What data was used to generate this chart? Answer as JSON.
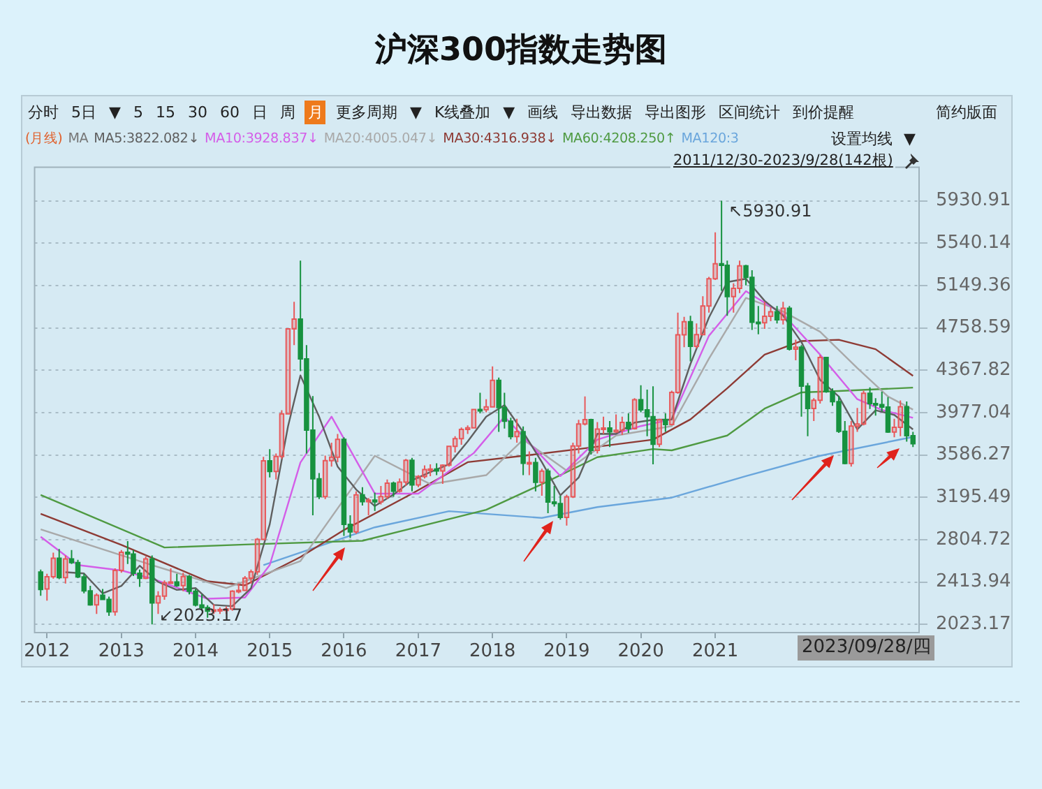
{
  "chart_data": {
    "type": "candlestick",
    "title": "沪深300指数走势图",
    "x": [
      "2011-12",
      "2012-01",
      "2012-02",
      "2012-03",
      "2012-04",
      "2012-05",
      "2012-06",
      "2012-07",
      "2012-08",
      "2012-09",
      "2012-10",
      "2012-11",
      "2012-12",
      "2013-01",
      "2013-02",
      "2013-03",
      "2013-04",
      "2013-05",
      "2013-06",
      "2013-07",
      "2013-08",
      "2013-09",
      "2013-10",
      "2013-11",
      "2013-12",
      "2014-01",
      "2014-02",
      "2014-03",
      "2014-04",
      "2014-05",
      "2014-06",
      "2014-07",
      "2014-08",
      "2014-09",
      "2014-10",
      "2014-11",
      "2014-12",
      "2015-01",
      "2015-02",
      "2015-03",
      "2015-04",
      "2015-05",
      "2015-06",
      "2015-07",
      "2015-08",
      "2015-09",
      "2015-10",
      "2015-11",
      "2015-12",
      "2016-01",
      "2016-02",
      "2016-03",
      "2016-04",
      "2016-05",
      "2016-06",
      "2016-07",
      "2016-08",
      "2016-09",
      "2016-10",
      "2016-11",
      "2016-12",
      "2017-01",
      "2017-02",
      "2017-03",
      "2017-04",
      "2017-05",
      "2017-06",
      "2017-07",
      "2017-08",
      "2017-09",
      "2017-10",
      "2017-11",
      "2017-12",
      "2018-01",
      "2018-02",
      "2018-03",
      "2018-04",
      "2018-05",
      "2018-06",
      "2018-07",
      "2018-08",
      "2018-09",
      "2018-10",
      "2018-11",
      "2018-12",
      "2019-01",
      "2019-02",
      "2019-03",
      "2019-04",
      "2019-05",
      "2019-06",
      "2019-07",
      "2019-08",
      "2019-09",
      "2019-10",
      "2019-11",
      "2019-12",
      "2020-01",
      "2020-02",
      "2020-03",
      "2020-04",
      "2020-05",
      "2020-06",
      "2020-07",
      "2020-08",
      "2020-09",
      "2020-10",
      "2020-11",
      "2020-12",
      "2021-01",
      "2021-02",
      "2021-03",
      "2021-04",
      "2021-05",
      "2021-06",
      "2021-07",
      "2021-08",
      "2021-09",
      "2021-10",
      "2021-11",
      "2021-12",
      "2022-01",
      "2022-02",
      "2022-03",
      "2022-04",
      "2022-05",
      "2022-06",
      "2022-07",
      "2022-08",
      "2022-09",
      "2022-10",
      "2022-11",
      "2022-12",
      "2023-01",
      "2023-02",
      "2023-03",
      "2023-04",
      "2023-05",
      "2023-06",
      "2023-07",
      "2023-08",
      "2023-09"
    ],
    "ohlc": [
      [
        2507,
        2530,
        2288,
        2346
      ],
      [
        2350,
        2490,
        2242,
        2464
      ],
      [
        2464,
        2685,
        2445,
        2634
      ],
      [
        2634,
        2720,
        2440,
        2455
      ],
      [
        2455,
        2660,
        2400,
        2627
      ],
      [
        2627,
        2710,
        2580,
        2593
      ],
      [
        2593,
        2620,
        2450,
        2461
      ],
      [
        2461,
        2490,
        2310,
        2333
      ],
      [
        2333,
        2380,
        2196,
        2204
      ],
      [
        2204,
        2310,
        2120,
        2293
      ],
      [
        2293,
        2350,
        2250,
        2254
      ],
      [
        2254,
        2280,
        2102,
        2140
      ],
      [
        2140,
        2540,
        2104,
        2522
      ],
      [
        2522,
        2710,
        2500,
        2688
      ],
      [
        2688,
        2791,
        2580,
        2673
      ],
      [
        2673,
        2710,
        2470,
        2495
      ],
      [
        2495,
        2530,
        2370,
        2448
      ],
      [
        2448,
        2650,
        2440,
        2627
      ],
      [
        2627,
        2660,
        2023.17,
        2221
      ],
      [
        2221,
        2330,
        2120,
        2284
      ],
      [
        2284,
        2430,
        2250,
        2409
      ],
      [
        2409,
        2540,
        2400,
        2415
      ],
      [
        2415,
        2490,
        2370,
        2381
      ],
      [
        2381,
        2500,
        2330,
        2465
      ],
      [
        2465,
        2480,
        2300,
        2330
      ],
      [
        2330,
        2350,
        2190,
        2203
      ],
      [
        2203,
        2300,
        2150,
        2178
      ],
      [
        2178,
        2200,
        2085,
        2146
      ],
      [
        2146,
        2210,
        2120,
        2158
      ],
      [
        2158,
        2180,
        2120,
        2160
      ],
      [
        2160,
        2190,
        2120,
        2165
      ],
      [
        2165,
        2340,
        2150,
        2329
      ],
      [
        2329,
        2400,
        2310,
        2338
      ],
      [
        2338,
        2470,
        2330,
        2450
      ],
      [
        2450,
        2530,
        2400,
        2508
      ],
      [
        2508,
        2820,
        2480,
        2808
      ],
      [
        2808,
        3570,
        2800,
        3533
      ],
      [
        3533,
        3640,
        3380,
        3434
      ],
      [
        3434,
        3600,
        3360,
        3572
      ],
      [
        3572,
        4000,
        3550,
        3966
      ],
      [
        3966,
        4750,
        3960,
        4749
      ],
      [
        4749,
        5000,
        4600,
        4840
      ],
      [
        4840,
        5380,
        4360,
        4473
      ],
      [
        4473,
        4600,
        3600,
        3816
      ],
      [
        3816,
        4130,
        3030,
        3366
      ],
      [
        3366,
        3420,
        3180,
        3202
      ],
      [
        3202,
        3580,
        3180,
        3534
      ],
      [
        3534,
        3700,
        3480,
        3566
      ],
      [
        3566,
        3780,
        3520,
        3731
      ],
      [
        3731,
        3750,
        2840,
        2946
      ],
      [
        2946,
        3030,
        2820,
        2877
      ],
      [
        2877,
        3250,
        2860,
        3218
      ],
      [
        3218,
        3290,
        3120,
        3156
      ],
      [
        3156,
        3190,
        3030,
        3170
      ],
      [
        3170,
        3240,
        3070,
        3154
      ],
      [
        3154,
        3300,
        3130,
        3203
      ],
      [
        3203,
        3360,
        3180,
        3327
      ],
      [
        3327,
        3340,
        3200,
        3253
      ],
      [
        3253,
        3370,
        3240,
        3336
      ],
      [
        3336,
        3550,
        3300,
        3538
      ],
      [
        3538,
        3560,
        3250,
        3310
      ],
      [
        3310,
        3400,
        3290,
        3387
      ],
      [
        3387,
        3490,
        3370,
        3452
      ],
      [
        3452,
        3500,
        3390,
        3456
      ],
      [
        3456,
        3510,
        3400,
        3439
      ],
      [
        3439,
        3500,
        3320,
        3492
      ],
      [
        3492,
        3670,
        3480,
        3666
      ],
      [
        3666,
        3760,
        3610,
        3737
      ],
      [
        3737,
        3840,
        3680,
        3822
      ],
      [
        3822,
        3860,
        3780,
        3837
      ],
      [
        3837,
        4010,
        3830,
        4006
      ],
      [
        4006,
        4160,
        3970,
        4004
      ],
      [
        4004,
        4100,
        3980,
        4030
      ],
      [
        4030,
        4403,
        4030,
        4275
      ],
      [
        4275,
        4300,
        3800,
        4023
      ],
      [
        4023,
        4160,
        3830,
        3898
      ],
      [
        3898,
        3930,
        3730,
        3756
      ],
      [
        3756,
        3920,
        3700,
        3802
      ],
      [
        3802,
        3850,
        3400,
        3510
      ],
      [
        3510,
        3620,
        3400,
        3517
      ],
      [
        3517,
        3560,
        3250,
        3334
      ],
      [
        3334,
        3460,
        3210,
        3438
      ],
      [
        3438,
        3460,
        3050,
        3153
      ],
      [
        3153,
        3300,
        3110,
        3138
      ],
      [
        3138,
        3210,
        2990,
        3010
      ],
      [
        3010,
        3220,
        2935,
        3201
      ],
      [
        3201,
        3700,
        3190,
        3669
      ],
      [
        3669,
        3910,
        3600,
        3872
      ],
      [
        3872,
        4127,
        3860,
        3913
      ],
      [
        3913,
        3920,
        3590,
        3629
      ],
      [
        3629,
        3890,
        3600,
        3825
      ],
      [
        3825,
        3940,
        3780,
        3835
      ],
      [
        3835,
        3900,
        3660,
        3799
      ],
      [
        3799,
        3960,
        3790,
        3814
      ],
      [
        3814,
        3940,
        3770,
        3886
      ],
      [
        3886,
        3970,
        3790,
        3828
      ],
      [
        3828,
        4110,
        3820,
        4096
      ],
      [
        4096,
        4230,
        3980,
        4003
      ],
      [
        4003,
        4190,
        3760,
        3940
      ],
      [
        3940,
        4220,
        3500,
        3686
      ],
      [
        3686,
        3920,
        3660,
        3912
      ],
      [
        3912,
        3970,
        3800,
        3868
      ],
      [
        3868,
        4180,
        3860,
        4163
      ],
      [
        4163,
        4900,
        4150,
        4695
      ],
      [
        4695,
        4860,
        4580,
        4816
      ],
      [
        4816,
        4870,
        4450,
        4588
      ],
      [
        4588,
        4800,
        4570,
        4696
      ],
      [
        4696,
        5050,
        4690,
        4960
      ],
      [
        4960,
        5230,
        4900,
        5211
      ],
      [
        5211,
        5640,
        5200,
        5351
      ],
      [
        5351,
        5930.91,
        5100,
        5336
      ],
      [
        5336,
        5380,
        4870,
        5048
      ],
      [
        5048,
        5170,
        4900,
        5123
      ],
      [
        5123,
        5380,
        5080,
        5331
      ],
      [
        5331,
        5340,
        5150,
        5224
      ],
      [
        5224,
        5290,
        4740,
        4811
      ],
      [
        4811,
        4960,
        4700,
        4806
      ],
      [
        4806,
        5000,
        4750,
        4866
      ],
      [
        4866,
        4950,
        4820,
        4908
      ],
      [
        4908,
        4960,
        4800,
        4833
      ],
      [
        4833,
        5000,
        4790,
        4940
      ],
      [
        4940,
        4960,
        4550,
        4563
      ],
      [
        4563,
        4650,
        4460,
        4581
      ],
      [
        4581,
        4600,
        3940,
        4222
      ],
      [
        4222,
        4250,
        3760,
        4016
      ],
      [
        4016,
        4110,
        3900,
        4091
      ],
      [
        4091,
        4510,
        4060,
        4485
      ],
      [
        4485,
        4490,
        4160,
        4170
      ],
      [
        4170,
        4200,
        4040,
        4079
      ],
      [
        4079,
        4130,
        3790,
        3804
      ],
      [
        3804,
        3900,
        3500,
        3509
      ],
      [
        3509,
        3900,
        3480,
        3853
      ],
      [
        3853,
        4020,
        3800,
        3872
      ],
      [
        3872,
        4180,
        3860,
        4156
      ],
      [
        4156,
        4210,
        4010,
        4061
      ],
      [
        4061,
        4110,
        3950,
        4051
      ],
      [
        4051,
        4170,
        3990,
        4029
      ],
      [
        4029,
        4120,
        3790,
        3798
      ],
      [
        3798,
        3920,
        3750,
        3842
      ],
      [
        3842,
        4090,
        3760,
        4031
      ],
      [
        4031,
        4080,
        3710,
        3765
      ],
      [
        3765,
        3800,
        3660,
        3690
      ]
    ],
    "colors": [
      "#17923f",
      "#e8585a",
      "#e8585a",
      "#17923f",
      "#e8585a",
      "#17923f",
      "#17923f",
      "#17923f",
      "#17923f",
      "#e8585a",
      "#17923f",
      "#17923f",
      "#e8585a",
      "#e8585a",
      "#17923f",
      "#17923f",
      "#17923f",
      "#e8585a",
      "#17923f",
      "#e8585a",
      "#e8585a",
      "#e8585a",
      "#17923f",
      "#e8585a",
      "#17923f",
      "#17923f",
      "#17923f",
      "#17923f",
      "#e8585a",
      "#e8585a",
      "#e8585a",
      "#e8585a",
      "#e8585a",
      "#e8585a",
      "#e8585a",
      "#e8585a",
      "#e8585a",
      "#17923f",
      "#e8585a",
      "#e8585a",
      "#e8585a",
      "#e8585a",
      "#17923f",
      "#17923f",
      "#17923f",
      "#17923f",
      "#e8585a",
      "#e8585a",
      "#e8585a",
      "#17923f",
      "#17923f",
      "#e8585a",
      "#17923f",
      "#e8585a",
      "#17923f",
      "#e8585a",
      "#e8585a",
      "#17923f",
      "#e8585a",
      "#e8585a",
      "#17923f",
      "#e8585a",
      "#e8585a",
      "#e8585a",
      "#17923f",
      "#e8585a",
      "#e8585a",
      "#e8585a",
      "#e8585a",
      "#e8585a",
      "#e8585a",
      "#17923f",
      "#e8585a",
      "#e8585a",
      "#17923f",
      "#17923f",
      "#17923f",
      "#e8585a",
      "#17923f",
      "#e8585a",
      "#17923f",
      "#e8585a",
      "#17923f",
      "#17923f",
      "#17923f",
      "#e8585a",
      "#e8585a",
      "#e8585a",
      "#e8585a",
      "#17923f",
      "#e8585a",
      "#e8585a",
      "#17923f",
      "#e8585a",
      "#e8585a",
      "#17923f",
      "#e8585a",
      "#17923f",
      "#17923f",
      "#17923f",
      "#e8585a",
      "#17923f",
      "#e8585a",
      "#e8585a",
      "#e8585a",
      "#17923f",
      "#e8585a",
      "#e8585a",
      "#e8585a",
      "#e8585a",
      "#17923f",
      "#17923f",
      "#e8585a",
      "#e8585a",
      "#17923f",
      "#17923f",
      "#17923f",
      "#e8585a",
      "#e8585a",
      "#17923f",
      "#e8585a",
      "#17923f",
      "#e8585a",
      "#17923f",
      "#17923f",
      "#e8585a",
      "#e8585a",
      "#17923f",
      "#17923f",
      "#17923f",
      "#17923f",
      "#e8585a",
      "#e8585a",
      "#e8585a",
      "#17923f",
      "#17923f",
      "#17923f",
      "#17923f",
      "#e8585a",
      "#e8585a",
      "#17923f",
      "#17923f"
    ],
    "series": [
      {
        "type": "line",
        "name": "MA5:3822.082↓",
        "color": "#5f5f5f",
        "x": [
          "2012-04",
          "2012-07",
          "2012-10",
          "2013-01",
          "2013-04",
          "2013-07",
          "2013-10",
          "2014-01",
          "2014-04",
          "2014-07",
          "2014-10",
          "2015-01",
          "2015-04",
          "2015-06",
          "2015-09",
          "2015-12",
          "2016-03",
          "2016-06",
          "2016-09",
          "2016-12",
          "2017-03",
          "2017-06",
          "2017-09",
          "2017-12",
          "2018-03",
          "2018-06",
          "2018-09",
          "2018-12",
          "2019-03",
          "2019-06",
          "2019-09",
          "2019-12",
          "2020-03",
          "2020-06",
          "2020-09",
          "2020-12",
          "2021-03",
          "2021-06",
          "2021-09",
          "2021-12",
          "2022-03",
          "2022-06",
          "2022-09",
          "2022-12",
          "2023-03",
          "2023-06",
          "2023-09"
        ],
        "values": [
          2505,
          2494,
          2309,
          2379,
          2565,
          2415,
          2342,
          2359,
          2203,
          2192,
          2358,
          2947,
          3851,
          4320,
          3939,
          3480,
          3268,
          3115,
          3221,
          3353,
          3429,
          3501,
          3711,
          3940,
          4046,
          3798,
          3520,
          3215,
          3378,
          3782,
          3780,
          3885,
          3911,
          3914,
          4426,
          4854,
          5181,
          5212,
          5008,
          4871,
          4628,
          4279,
          4126,
          3823,
          3999,
          3956,
          3822
        ]
      },
      {
        "type": "line",
        "name": "MA10:3928.837↓",
        "color": "#d45ee8",
        "x": [
          "2011-12",
          "2012-06",
          "2013-01",
          "2013-06",
          "2014-03",
          "2014-09",
          "2015-01",
          "2015-06",
          "2015-11",
          "2016-06",
          "2017-01",
          "2017-10",
          "2018-03",
          "2018-12",
          "2019-06",
          "2020-01",
          "2020-06",
          "2020-12",
          "2021-06",
          "2021-12",
          "2022-06",
          "2022-12",
          "2023-04",
          "2023-09"
        ],
        "values": [
          2832,
          2571,
          2521,
          2446,
          2260,
          2272,
          2571,
          3517,
          3940,
          3230,
          3230,
          3604,
          3940,
          3392,
          3728,
          3853,
          3915,
          4686,
          5097,
          4885,
          4512,
          4101,
          4002,
          3929
        ]
      },
      {
        "type": "line",
        "name": "MA20:4005.047↓",
        "color": "#a9a9a9",
        "x": [
          "2011-12",
          "2013-06",
          "2014-06",
          "2015-06",
          "2016-06",
          "2017-03",
          "2017-12",
          "2018-06",
          "2019-01",
          "2019-09",
          "2020-06",
          "2020-12",
          "2021-06",
          "2021-12",
          "2022-06",
          "2022-12",
          "2023-05",
          "2023-09"
        ],
        "values": [
          2900,
          2571,
          2359,
          2608,
          3579,
          3317,
          3400,
          3728,
          3442,
          3766,
          3853,
          4475,
          5035,
          4910,
          4723,
          4388,
          4126,
          4005
        ]
      },
      {
        "type": "line",
        "name": "MA30:4316.938↓",
        "color": "#8e3b35",
        "x": [
          "2011-12",
          "2013-01",
          "2014-03",
          "2014-09",
          "2015-06",
          "2016-01",
          "2016-12",
          "2017-09",
          "2018-06",
          "2019-03",
          "2020-03",
          "2020-09",
          "2021-03",
          "2021-09",
          "2022-03",
          "2022-09",
          "2023-03",
          "2023-09"
        ],
        "values": [
          3044,
          2757,
          2421,
          2384,
          2645,
          2894,
          3230,
          3520,
          3579,
          3641,
          3728,
          3915,
          4201,
          4512,
          4637,
          4649,
          4562,
          4317
        ]
      },
      {
        "type": "line",
        "name": "MA60:4208.250↑",
        "color": "#4f9a42",
        "x": [
          "2011-12",
          "2013-08",
          "2014-09",
          "2016-04",
          "2017-12",
          "2018-09",
          "2019-06",
          "2020-03",
          "2020-06",
          "2021-03",
          "2021-09",
          "2022-03",
          "2022-09",
          "2023-09"
        ],
        "values": [
          3218,
          2733,
          2760,
          2795,
          3081,
          3317,
          3566,
          3641,
          3629,
          3766,
          4014,
          4164,
          4176,
          4208
        ]
      },
      {
        "type": "line",
        "name": "MA120:3",
        "color": "#6aa6dc",
        "x": [
          "2014-12",
          "2016-06",
          "2017-06",
          "2018-09",
          "2019-06",
          "2020-06",
          "2021-06",
          "2022-06",
          "2023-09"
        ],
        "values": [
          2571,
          2919,
          3068,
          3006,
          3106,
          3193,
          3392,
          3579,
          3753
        ]
      }
    ],
    "xlim": [
      "2011-11",
      "2023-10"
    ],
    "xticks": [
      "2012",
      "2013",
      "2014",
      "2015",
      "2016",
      "2017",
      "2018",
      "2019",
      "2020",
      "2021"
    ],
    "ylim": [
      1948,
      6240
    ],
    "yticks": [
      2023.17,
      2413.94,
      2804.72,
      3195.49,
      3586.27,
      3977.04,
      4367.82,
      4758.59,
      5149.36,
      5540.14,
      5930.91
    ],
    "grid": "y",
    "legend": "top left",
    "marker": "none",
    "annotations": [
      "分时",
      "5日",
      "▼",
      "5",
      "15",
      "30",
      "60",
      "日",
      "周",
      "月",
      "更多周期",
      "▼",
      "K线叠加",
      "▼",
      "画线",
      "导出数据",
      "导出图形",
      "区间统计",
      "到价提醒",
      "简约版面",
      "(月线)",
      "MA",
      "设置均线",
      "▼",
      "2011/12/30-2023/9/28(142根)",
      {
        "text": "↖5930.91",
        "x": "2021-02",
        "y": 5930.91
      },
      {
        "text": "↙2023.17",
        "x": "2013-06",
        "y": 2023.17
      },
      "2023/09/28/四"
    ]
  }
}
